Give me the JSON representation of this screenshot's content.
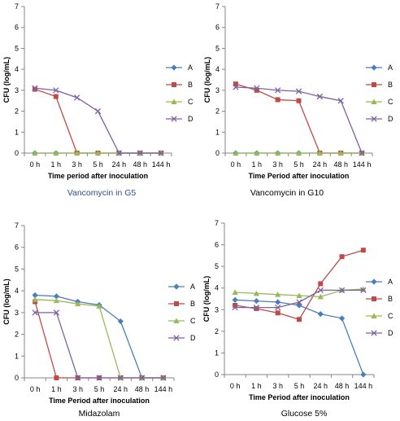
{
  "chart_data": [
    {
      "type": "line",
      "caption": "Vancomycin in G5",
      "xlabel": "Time period after inoculation",
      "ylabel": "CFU (log/mL)",
      "categories": [
        "0 h",
        "1 h",
        "3 h",
        "5 h",
        "24 h",
        "48 h",
        "144 h"
      ],
      "ylim": [
        0,
        7
      ],
      "yticks": [
        "0",
        "1",
        "2",
        "3",
        "4",
        "5",
        "6",
        "7"
      ],
      "legend_position": "right",
      "series": [
        {
          "name": "A",
          "color": "#4a7ebb",
          "marker": "diamond",
          "values": [
            0,
            0,
            0,
            0,
            0,
            0,
            0
          ]
        },
        {
          "name": "B",
          "color": "#be4b48",
          "marker": "square",
          "values": [
            3.05,
            2.7,
            0,
            0,
            0,
            0,
            0
          ]
        },
        {
          "name": "C",
          "color": "#98b954",
          "marker": "triangle",
          "values": [
            0,
            0,
            0,
            0,
            0,
            0,
            0
          ]
        },
        {
          "name": "D",
          "color": "#7d60a0",
          "marker": "x",
          "values": [
            3.1,
            3.0,
            2.65,
            2.0,
            0,
            0,
            0
          ]
        }
      ]
    },
    {
      "type": "line",
      "caption": "Vancomycin in G10",
      "xlabel": "Time Period after inoculation",
      "ylabel": "CFU (log/mL)",
      "categories": [
        "0 h",
        "1 h",
        "3 h",
        "5 h",
        "24 h",
        "48 h",
        "144 h"
      ],
      "ylim": [
        0,
        7
      ],
      "yticks": [
        "0",
        "1",
        "2",
        "3",
        "4",
        "5",
        "6",
        "7"
      ],
      "legend_position": "right",
      "series": [
        {
          "name": "A",
          "color": "#4a7ebb",
          "marker": "diamond",
          "values": [
            0,
            0,
            0,
            0,
            0,
            0,
            0
          ]
        },
        {
          "name": "B",
          "color": "#be4b48",
          "marker": "square",
          "values": [
            3.3,
            3.0,
            2.55,
            2.5,
            0,
            0,
            0
          ]
        },
        {
          "name": "C",
          "color": "#98b954",
          "marker": "triangle",
          "values": [
            0,
            0,
            0,
            0,
            0,
            0,
            0
          ]
        },
        {
          "name": "D",
          "color": "#7d60a0",
          "marker": "x",
          "values": [
            3.15,
            3.1,
            3.0,
            2.95,
            2.7,
            2.5,
            0
          ]
        }
      ]
    },
    {
      "type": "line",
      "caption": "Midazolam",
      "xlabel": "Time Period after inoculation",
      "ylabel": "CFU (log/mL)",
      "categories": [
        "0 h",
        "1 h",
        "3 h",
        "5 h",
        "24 h",
        "48 h",
        "144 h"
      ],
      "ylim": [
        0,
        7
      ],
      "yticks": [
        "0",
        "1",
        "2",
        "3",
        "4",
        "5",
        "6",
        "7"
      ],
      "legend_position": "right",
      "series": [
        {
          "name": "A",
          "color": "#4a7ebb",
          "marker": "diamond",
          "values": [
            3.8,
            3.75,
            3.5,
            3.35,
            2.6,
            0,
            0
          ]
        },
        {
          "name": "B",
          "color": "#be4b48",
          "marker": "square",
          "values": [
            3.5,
            0,
            0,
            0,
            0,
            0,
            0
          ]
        },
        {
          "name": "C",
          "color": "#98b954",
          "marker": "triangle",
          "values": [
            3.6,
            3.55,
            3.4,
            3.3,
            0,
            0,
            0
          ]
        },
        {
          "name": "D",
          "color": "#7d60a0",
          "marker": "x",
          "values": [
            3.0,
            3.0,
            0,
            0,
            0,
            0,
            0
          ]
        }
      ]
    },
    {
      "type": "line",
      "caption": "Glucose 5%",
      "xlabel": "Time Period after inoculation",
      "ylabel": "CFU (log/mL)",
      "categories": [
        "0 h",
        "1 h",
        "3 h",
        "5 h",
        "24 h",
        "48 h",
        "144 h"
      ],
      "ylim": [
        0,
        7
      ],
      "yticks": [
        "0",
        "1",
        "2",
        "3",
        "4",
        "5",
        "6",
        "7"
      ],
      "legend_position": "right",
      "series": [
        {
          "name": "A",
          "color": "#4a7ebb",
          "marker": "diamond",
          "values": [
            3.45,
            3.4,
            3.35,
            3.2,
            2.8,
            2.6,
            0
          ]
        },
        {
          "name": "B",
          "color": "#be4b48",
          "marker": "square",
          "values": [
            3.2,
            3.05,
            2.85,
            2.55,
            4.2,
            5.45,
            5.75
          ]
        },
        {
          "name": "C",
          "color": "#98b954",
          "marker": "triangle",
          "values": [
            3.8,
            3.75,
            3.7,
            3.65,
            3.6,
            3.9,
            3.95
          ]
        },
        {
          "name": "D",
          "color": "#7d60a0",
          "marker": "x",
          "values": [
            3.1,
            3.1,
            3.1,
            3.35,
            3.9,
            3.9,
            3.9
          ]
        }
      ]
    }
  ]
}
